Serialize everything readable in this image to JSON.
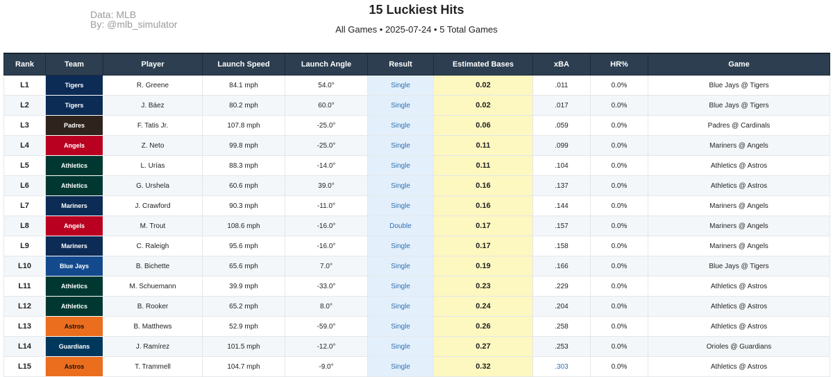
{
  "credits": {
    "line1": "Data: MLB",
    "line2": "By: @mlb_simulator"
  },
  "title": "15 Luckiest Hits",
  "subtitle": "All Games • 2025-07-24 • 5 Total Games",
  "columns": [
    "Rank",
    "Team",
    "Player",
    "Launch Speed",
    "Launch Angle",
    "Result",
    "Estimated Bases",
    "xBA",
    "HR%",
    "Game"
  ],
  "team_colors": {
    "Tigers": "#0c2c56",
    "Padres": "#2f241d",
    "Angels": "#ba0021",
    "Athletics": "#003831",
    "Mariners": "#0c2c56",
    "Blue Jays": "#134a8e",
    "Astros": "#eb6e1f",
    "Guardians": "#00385d"
  },
  "rows": [
    {
      "rank": "L1",
      "team": "Tigers",
      "player": "R. Greene",
      "speed": "84.1 mph",
      "angle": "54.0°",
      "result": "Single",
      "est": "0.02",
      "xba": ".011",
      "hr": "0.0%",
      "game": "Blue Jays @ Tigers"
    },
    {
      "rank": "L2",
      "team": "Tigers",
      "player": "J. Báez",
      "speed": "80.2 mph",
      "angle": "60.0°",
      "result": "Single",
      "est": "0.02",
      "xba": ".017",
      "hr": "0.0%",
      "game": "Blue Jays @ Tigers"
    },
    {
      "rank": "L3",
      "team": "Padres",
      "player": "F. Tatis Jr.",
      "speed": "107.8 mph",
      "angle": "-25.0°",
      "result": "Single",
      "est": "0.06",
      "xba": ".059",
      "hr": "0.0%",
      "game": "Padres @ Cardinals"
    },
    {
      "rank": "L4",
      "team": "Angels",
      "player": "Z. Neto",
      "speed": "99.8 mph",
      "angle": "-25.0°",
      "result": "Single",
      "est": "0.11",
      "xba": ".099",
      "hr": "0.0%",
      "game": "Mariners @ Angels"
    },
    {
      "rank": "L5",
      "team": "Athletics",
      "player": "L. Urías",
      "speed": "88.3 mph",
      "angle": "-14.0°",
      "result": "Single",
      "est": "0.11",
      "xba": ".104",
      "hr": "0.0%",
      "game": "Athletics @ Astros"
    },
    {
      "rank": "L6",
      "team": "Athletics",
      "player": "G. Urshela",
      "speed": "60.6 mph",
      "angle": "39.0°",
      "result": "Single",
      "est": "0.16",
      "xba": ".137",
      "hr": "0.0%",
      "game": "Athletics @ Astros"
    },
    {
      "rank": "L7",
      "team": "Mariners",
      "player": "J. Crawford",
      "speed": "90.3 mph",
      "angle": "-11.0°",
      "result": "Single",
      "est": "0.16",
      "xba": ".144",
      "hr": "0.0%",
      "game": "Mariners @ Angels"
    },
    {
      "rank": "L8",
      "team": "Angels",
      "player": "M. Trout",
      "speed": "108.6 mph",
      "angle": "-16.0°",
      "result": "Double",
      "est": "0.17",
      "xba": ".157",
      "hr": "0.0%",
      "game": "Mariners @ Angels"
    },
    {
      "rank": "L9",
      "team": "Mariners",
      "player": "C. Raleigh",
      "speed": "95.6 mph",
      "angle": "-16.0°",
      "result": "Single",
      "est": "0.17",
      "xba": ".158",
      "hr": "0.0%",
      "game": "Mariners @ Angels"
    },
    {
      "rank": "L10",
      "team": "Blue Jays",
      "player": "B. Bichette",
      "speed": "65.6 mph",
      "angle": "7.0°",
      "result": "Single",
      "est": "0.19",
      "xba": ".166",
      "hr": "0.0%",
      "game": "Blue Jays @ Tigers"
    },
    {
      "rank": "L11",
      "team": "Athletics",
      "player": "M. Schuemann",
      "speed": "39.9 mph",
      "angle": "-33.0°",
      "result": "Single",
      "est": "0.23",
      "xba": ".229",
      "hr": "0.0%",
      "game": "Athletics @ Astros"
    },
    {
      "rank": "L12",
      "team": "Athletics",
      "player": "B. Rooker",
      "speed": "65.2 mph",
      "angle": "8.0°",
      "result": "Single",
      "est": "0.24",
      "xba": ".204",
      "hr": "0.0%",
      "game": "Athletics @ Astros"
    },
    {
      "rank": "L13",
      "team": "Astros",
      "player": "B. Matthews",
      "speed": "52.9 mph",
      "angle": "-59.0°",
      "result": "Single",
      "est": "0.26",
      "xba": ".258",
      "hr": "0.0%",
      "game": "Athletics @ Astros"
    },
    {
      "rank": "L14",
      "team": "Guardians",
      "player": "J. Ramírez",
      "speed": "101.5 mph",
      "angle": "-12.0°",
      "result": "Single",
      "est": "0.27",
      "xba": ".253",
      "hr": "0.0%",
      "game": "Orioles @ Guardians"
    },
    {
      "rank": "L15",
      "team": "Astros",
      "player": "T. Trammell",
      "speed": "104.7 mph",
      "angle": "-9.0°",
      "result": "Single",
      "est": "0.32",
      "xba": ".303",
      "hr": "0.0%",
      "game": "Athletics @ Astros",
      "xba_highlight": true
    }
  ]
}
